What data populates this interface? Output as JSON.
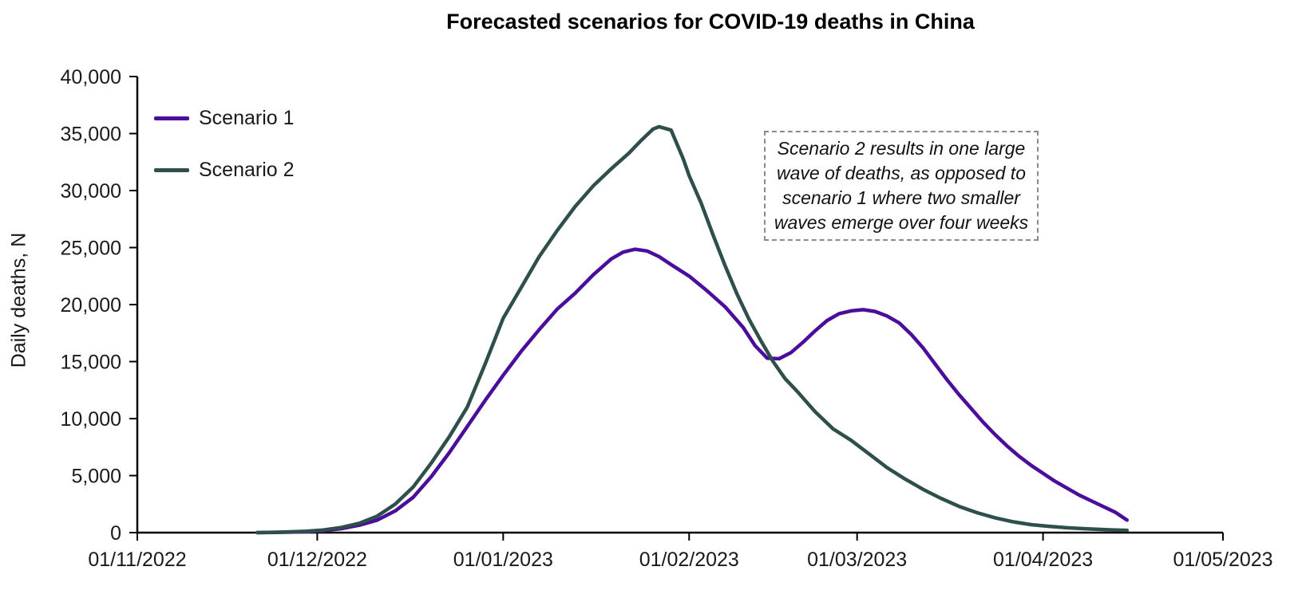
{
  "header": {
    "title": "Forecasted scenarios for COVID-19 deaths in China"
  },
  "y_axis": {
    "label": "Daily deaths, N",
    "min": 0,
    "max": 40000,
    "step": 5000,
    "tick_labels": [
      "0",
      "5,000",
      "10,000",
      "15,000",
      "20,000",
      "25,000",
      "30,000",
      "35,000",
      "40,000"
    ]
  },
  "x_axis": {
    "tick_labels": [
      "01/11/2022",
      "01/12/2022",
      "01/01/2023",
      "01/02/2023",
      "01/03/2023",
      "01/04/2023",
      "01/05/2023"
    ],
    "tick_days": [
      0,
      30,
      61,
      92,
      120,
      151,
      181
    ]
  },
  "legend": {
    "items": [
      {
        "label": "Scenario 1",
        "color": "#4B0D9B"
      },
      {
        "label": "Scenario 2",
        "color": "#2E4F4C"
      }
    ]
  },
  "annotation": {
    "text": "Scenario 2 results in one large wave of deaths, as opposed to scenario 1 where two smaller waves emerge over four weeks",
    "lines": [
      "Scenario 2 results in one large",
      "wave of deaths, as opposed to",
      "scenario 1 where two smaller",
      "waves emerge over four weeks"
    ]
  },
  "chart_data": {
    "type": "line",
    "title": "Forecasted scenarios for COVID-19 deaths in China",
    "xlabel": "",
    "ylabel": "Daily deaths, N",
    "ylim": [
      0,
      40000
    ],
    "x_unit": "days since 01/11/2022",
    "x_tick_labels": [
      "01/11/2022",
      "01/12/2022",
      "01/01/2023",
      "01/02/2023",
      "01/03/2023",
      "01/04/2023",
      "01/05/2023"
    ],
    "x_tick_days": [
      0,
      30,
      61,
      92,
      120,
      151,
      181
    ],
    "grid": false,
    "legend_position": "top-left",
    "annotation": "Scenario 2 results in one large wave of deaths, as opposed to scenario 1 where two smaller waves emerge over four weeks",
    "series": [
      {
        "name": "Scenario 1",
        "color": "#4B0D9B",
        "points": [
          [
            20,
            0
          ],
          [
            24,
            30
          ],
          [
            28,
            80
          ],
          [
            31,
            160
          ],
          [
            34,
            350
          ],
          [
            37,
            650
          ],
          [
            40,
            1100
          ],
          [
            43,
            1900
          ],
          [
            46,
            3100
          ],
          [
            49,
            4900
          ],
          [
            52,
            7000
          ],
          [
            55,
            9300
          ],
          [
            58,
            11600
          ],
          [
            61,
            13800
          ],
          [
            64,
            15900
          ],
          [
            67,
            17800
          ],
          [
            70,
            19600
          ],
          [
            73,
            21000
          ],
          [
            76,
            22600
          ],
          [
            79,
            24000
          ],
          [
            81,
            24600
          ],
          [
            83,
            24850
          ],
          [
            85,
            24700
          ],
          [
            87,
            24200
          ],
          [
            89,
            23500
          ],
          [
            92,
            22500
          ],
          [
            95,
            21200
          ],
          [
            98,
            19800
          ],
          [
            101,
            18000
          ],
          [
            103,
            16400
          ],
          [
            105,
            15300
          ],
          [
            107,
            15250
          ],
          [
            109,
            15800
          ],
          [
            111,
            16700
          ],
          [
            113,
            17700
          ],
          [
            115,
            18600
          ],
          [
            117,
            19200
          ],
          [
            119,
            19450
          ],
          [
            121,
            19550
          ],
          [
            123,
            19400
          ],
          [
            125,
            19000
          ],
          [
            127,
            18400
          ],
          [
            129,
            17400
          ],
          [
            131,
            16200
          ],
          [
            133,
            14800
          ],
          [
            135,
            13400
          ],
          [
            137,
            12100
          ],
          [
            139,
            10900
          ],
          [
            141,
            9700
          ],
          [
            143,
            8600
          ],
          [
            145,
            7600
          ],
          [
            147,
            6700
          ],
          [
            149,
            5900
          ],
          [
            151,
            5200
          ],
          [
            153,
            4500
          ],
          [
            155,
            3900
          ],
          [
            157,
            3300
          ],
          [
            159,
            2800
          ],
          [
            161,
            2300
          ],
          [
            163,
            1800
          ],
          [
            165,
            1100
          ]
        ]
      },
      {
        "name": "Scenario 2",
        "color": "#2E4F4C",
        "points": [
          [
            20,
            0
          ],
          [
            24,
            40
          ],
          [
            28,
            110
          ],
          [
            31,
            230
          ],
          [
            34,
            450
          ],
          [
            37,
            820
          ],
          [
            40,
            1450
          ],
          [
            43,
            2500
          ],
          [
            46,
            4000
          ],
          [
            49,
            6100
          ],
          [
            52,
            8400
          ],
          [
            55,
            11000
          ],
          [
            58,
            14800
          ],
          [
            61,
            18800
          ],
          [
            64,
            21500
          ],
          [
            67,
            24200
          ],
          [
            70,
            26500
          ],
          [
            73,
            28600
          ],
          [
            76,
            30400
          ],
          [
            79,
            31900
          ],
          [
            82,
            33300
          ],
          [
            84,
            34400
          ],
          [
            86,
            35400
          ],
          [
            87,
            35600
          ],
          [
            89,
            35300
          ],
          [
            91,
            32800
          ],
          [
            92,
            31300
          ],
          [
            94,
            28900
          ],
          [
            96,
            26100
          ],
          [
            98,
            23400
          ],
          [
            100,
            20900
          ],
          [
            102,
            18700
          ],
          [
            104,
            16800
          ],
          [
            106,
            15000
          ],
          [
            108,
            13500
          ],
          [
            110,
            12400
          ],
          [
            113,
            10600
          ],
          [
            116,
            9100
          ],
          [
            119,
            8100
          ],
          [
            122,
            6900
          ],
          [
            125,
            5700
          ],
          [
            128,
            4700
          ],
          [
            131,
            3800
          ],
          [
            134,
            3000
          ],
          [
            137,
            2300
          ],
          [
            140,
            1750
          ],
          [
            143,
            1300
          ],
          [
            146,
            950
          ],
          [
            149,
            700
          ],
          [
            152,
            550
          ],
          [
            155,
            430
          ],
          [
            158,
            340
          ],
          [
            161,
            270
          ],
          [
            163,
            230
          ],
          [
            165,
            200
          ]
        ]
      }
    ]
  }
}
